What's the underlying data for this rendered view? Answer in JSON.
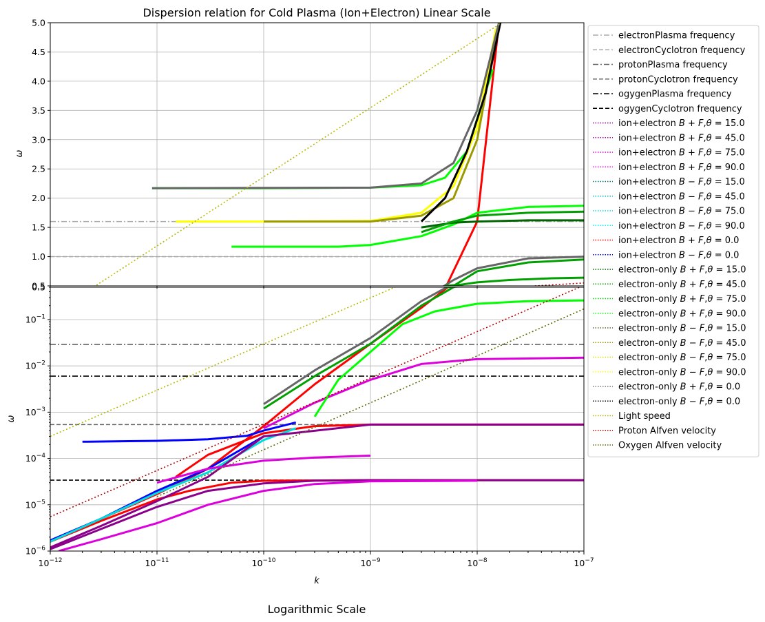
{
  "chart_data": {
    "title": "Dispersion relation for Cold Plasma (Ion+Electron) Linear Scale",
    "bottom_title": "Logarithmic Scale",
    "xlabel": "k",
    "ylabel": "ω",
    "x_scale": "log",
    "xlim": [
      1e-12,
      1e-07
    ],
    "x_ticks": [
      "10^-12",
      "10^-11",
      "10^-10",
      "10^-9",
      "10^-8",
      "10^-7"
    ],
    "grid": true,
    "legend_placement": "outside-right",
    "panels": [
      {
        "name": "linear",
        "type": "line",
        "y_scale": "linear",
        "ylim": [
          0.5,
          5.0
        ],
        "y_ticks": [
          "0.5",
          "1.0",
          "1.5",
          "2.0",
          "2.5",
          "3.0",
          "3.5",
          "4.0",
          "4.5",
          "5.0"
        ]
      },
      {
        "name": "logarithmic",
        "type": "line",
        "y_scale": "log",
        "ylim": [
          1e-06,
          0.5
        ],
        "y_ticks": [
          "10^-6",
          "10^-5",
          "10^-4",
          "10^-3",
          "10^-2",
          "10^-1",
          "0.5"
        ]
      }
    ],
    "reference_lines": [
      {
        "name": "electronPlasma frequency",
        "value": 1.6,
        "color": "#aaaaaa",
        "dash": "dashdot"
      },
      {
        "name": "electronCyclotron frequency",
        "value": 1.0,
        "color": "#aaaaaa",
        "dash": "dashed"
      },
      {
        "name": "protonPlasma frequency",
        "value": 0.029,
        "color": "#666666",
        "dash": "dashdot"
      },
      {
        "name": "protonCyclotron frequency",
        "value": 0.00054,
        "color": "#666666",
        "dash": "dashed"
      },
      {
        "name": "ogygenPlasma frequency",
        "value": 0.006,
        "color": "#000000",
        "dash": "dashdot"
      },
      {
        "name": "ogygenCyclotron frequency",
        "value": 3.4e-05,
        "color": "#000000",
        "dash": "dashed"
      }
    ],
    "series": [
      {
        "name": "ion+electron $B+F,\\theta=15.0$",
        "color": "#8b008b",
        "style": "dotted"
      },
      {
        "name": "ion+electron $B+F,\\theta=45.0$",
        "color": "#b000b0",
        "style": "dotted"
      },
      {
        "name": "ion+electron $B+F,\\theta=75.0$",
        "color": "#dd00dd",
        "style": "dotted"
      },
      {
        "name": "ion+electron $B+F,\\theta=90.0$",
        "color": "#ff00ff",
        "style": "dotted"
      },
      {
        "name": "ion+electron $B-F,\\theta=15.0$",
        "color": "#008080",
        "style": "dotted"
      },
      {
        "name": "ion+electron $B-F,\\theta=45.0$",
        "color": "#00b5b5",
        "style": "dotted"
      },
      {
        "name": "ion+electron $B-F,\\theta=75.0$",
        "color": "#00dddd",
        "style": "dotted"
      },
      {
        "name": "ion+electron $B-F,\\theta=90.0$",
        "color": "#00ffff",
        "style": "dotted"
      },
      {
        "name": "ion+electron $B+F,\\theta=0.0$",
        "color": "#ff0000",
        "style": "dotted"
      },
      {
        "name": "ion+electron $B-F,\\theta=0.0$",
        "color": "#0000ff",
        "style": "dotted"
      },
      {
        "name": "electron-only $B+F,\\theta=15.0$",
        "color": "#006400",
        "style": "dotted"
      },
      {
        "name": "electron-only $B+F,\\theta=45.0$",
        "color": "#00a000",
        "style": "dotted"
      },
      {
        "name": "electron-only $B+F,\\theta=75.0$",
        "color": "#00dd00",
        "style": "dotted"
      },
      {
        "name": "electron-only $B+F,\\theta=90.0$",
        "color": "#00ff00",
        "style": "dotted"
      },
      {
        "name": "electron-only $B-F,\\theta=15.0$",
        "color": "#556b2f",
        "style": "dotted"
      },
      {
        "name": "electron-only $B-F,\\theta=45.0$",
        "color": "#9a9a00",
        "style": "dotted"
      },
      {
        "name": "electron-only $B-F,\\theta=75.0$",
        "color": "#dddd00",
        "style": "dotted"
      },
      {
        "name": "electron-only $B-F,\\theta=90.0$",
        "color": "#ffff00",
        "style": "dotted"
      },
      {
        "name": "electron-only $B+F,\\theta=0.0$",
        "color": "#777777",
        "style": "dotted"
      },
      {
        "name": "electron-only $B-F,\\theta=0.0$",
        "color": "#000000",
        "style": "dotted"
      },
      {
        "name": "Light speed",
        "color": "#b8b800",
        "style": "dotted",
        "x": [
          1e-12,
          1.7e-08
        ],
        "y": [
          0.0003,
          5.0
        ]
      },
      {
        "name": "Proton Alfven velocity",
        "color": "#b00000",
        "style": "dotted",
        "x": [
          1e-12,
          1e-07
        ],
        "y": [
          5.5e-06,
          0.55
        ]
      },
      {
        "name": "Oxygen Alfven velocity",
        "color": "#556b00",
        "style": "dotted",
        "x": [
          1e-11,
          1e-07
        ],
        "y": [
          1.5e-05,
          0.17
        ]
      }
    ],
    "curve_shapes": [
      {
        "color": "#ff0000",
        "x": [
          1e-12,
          3e-12,
          1e-11,
          3e-11,
          1e-10,
          3e-10,
          1e-09,
          3e-09,
          5e-09,
          1e-08,
          1.6e-08
        ],
        "y": [
          1.6e-06,
          5e-06,
          1.7e-05,
          6e-05,
          0.0005,
          0.004,
          0.03,
          0.18,
          0.45,
          1.6,
          5.0
        ]
      },
      {
        "color": "#ff0000",
        "x": [
          1e-12,
          3e-12,
          1e-11,
          2e-11,
          5e-11,
          1e-10,
          1e-09,
          1e-07
        ],
        "y": [
          1.6e-06,
          4.5e-06,
          1.3e-05,
          2e-05,
          3e-05,
          3.3e-05,
          3.4e-05,
          3.4e-05
        ]
      },
      {
        "color": "#ff0000",
        "x": [
          1.5e-11,
          3e-11,
          1e-10,
          3e-10,
          1e-09,
          1e-07
        ],
        "y": [
          4e-05,
          0.00012,
          0.00035,
          0.0005,
          0.00054,
          0.00054
        ]
      },
      {
        "color": "#0000ff",
        "x": [
          2e-12,
          1e-11,
          3e-11,
          7e-11,
          1e-10,
          2e-10
        ],
        "y": [
          0.00023,
          0.00024,
          0.00026,
          0.00031,
          0.0004,
          0.0006
        ]
      },
      {
        "color": "#0000ff",
        "x": [
          1e-12,
          3e-12,
          1e-11,
          3e-11,
          1e-10
        ],
        "y": [
          1.7e-06,
          5e-06,
          2e-05,
          6e-05,
          0.0003
        ]
      },
      {
        "color": "#00dddd",
        "x": [
          1e-12,
          3e-12,
          1e-11,
          3e-11,
          1e-10,
          2e-10
        ],
        "y": [
          1.6e-06,
          5e-06,
          1.8e-05,
          5e-05,
          0.00025,
          0.00045
        ]
      },
      {
        "color": "#8b008b",
        "x": [
          1e-12,
          3e-12,
          1e-11,
          3e-11,
          1e-10,
          1e-09,
          1e-07
        ],
        "y": [
          1.2e-06,
          3.5e-06,
          1.2e-05,
          4e-05,
          0.0003,
          0.00054,
          0.00054
        ]
      },
      {
        "color": "#8b008b",
        "x": [
          1e-12,
          3e-12,
          1e-11,
          3e-11,
          1e-10,
          3e-10,
          1e-09,
          1e-07
        ],
        "y": [
          1.1e-06,
          3e-06,
          9e-06,
          2e-05,
          2.9e-05,
          3.3e-05,
          3.4e-05,
          3.4e-05
        ]
      },
      {
        "color": "#dd00dd",
        "x": [
          1.2e-12,
          3e-12,
          1e-11,
          3e-11,
          1e-10,
          3e-10,
          1e-09,
          1e-08
        ],
        "y": [
          1e-06,
          1.8e-06,
          4e-06,
          1e-05,
          2e-05,
          2.8e-05,
          3.2e-05,
          3.3e-05
        ]
      },
      {
        "color": "#dd00dd",
        "x": [
          1e-11,
          3e-11,
          1e-10,
          3e-10,
          1e-09
        ],
        "y": [
          3e-05,
          6e-05,
          9e-05,
          0.000105,
          0.000115
        ]
      },
      {
        "color": "#dd00dd",
        "x": [
          1e-10,
          3e-10,
          1e-09,
          3e-09,
          1e-08,
          1e-07
        ],
        "y": [
          0.00045,
          0.0016,
          0.005,
          0.011,
          0.014,
          0.015
        ]
      },
      {
        "color": "#666666",
        "x": [
          1e-10,
          3e-10,
          1e-09,
          3e-09,
          6e-09,
          1e-08,
          3e-08,
          1e-07
        ],
        "y": [
          0.0015,
          0.008,
          0.04,
          0.25,
          0.6,
          0.8,
          0.97,
          1.0
        ]
      },
      {
        "color": "#00a000",
        "x": [
          1e-10,
          3e-10,
          1e-09,
          3e-09,
          6e-09,
          1e-08,
          3e-08,
          1e-07
        ],
        "y": [
          0.0012,
          0.006,
          0.03,
          0.2,
          0.5,
          0.75,
          0.9,
          0.95
        ]
      },
      {
        "color": "#00a000",
        "x": [
          5e-09,
          7e-09,
          1e-08,
          2e-08,
          5e-08,
          1e-07
        ],
        "y": [
          0.5,
          0.52,
          0.56,
          0.6,
          0.63,
          0.64
        ]
      },
      {
        "color": "#00ff00",
        "x": [
          3e-10,
          5e-10,
          1e-09,
          2e-09,
          4e-09,
          1e-08,
          3e-08,
          1e-07
        ],
        "y": [
          0.0008,
          0.005,
          0.02,
          0.08,
          0.15,
          0.22,
          0.25,
          0.26
        ]
      },
      {
        "color": "#00ff00",
        "x": [
          9e-12,
          1e-10,
          1e-09,
          3e-09,
          5e-09,
          8e-09,
          1.4e-08
        ],
        "y": [
          2.17,
          2.17,
          2.18,
          2.22,
          2.35,
          2.8,
          4.2
        ]
      },
      {
        "color": "#00ff00",
        "x": [
          5e-11,
          1e-10,
          5e-10,
          1e-09,
          3e-09,
          6e-09,
          1e-08,
          3e-08,
          1e-07
        ],
        "y": [
          1.17,
          1.17,
          1.17,
          1.2,
          1.35,
          1.55,
          1.75,
          1.85,
          1.87
        ]
      },
      {
        "color": "#ffff00",
        "x": [
          1.5e-11,
          1e-10,
          1e-09,
          3e-09,
          6e-09,
          1e-08,
          1.5e-08
        ],
        "y": [
          1.6,
          1.6,
          1.61,
          1.75,
          2.2,
          3.2,
          4.9
        ]
      },
      {
        "color": "#9a9a00",
        "x": [
          1e-10,
          1e-09,
          3e-09,
          6e-09,
          1e-08,
          1.6e-08
        ],
        "y": [
          1.6,
          1.6,
          1.7,
          2.0,
          3.0,
          5.0
        ]
      },
      {
        "color": "#000000",
        "x": [
          3e-09,
          5e-09,
          8e-09,
          1.2e-08,
          1.65e-08
        ],
        "y": [
          1.6,
          2.0,
          2.8,
          3.8,
          5.0
        ]
      },
      {
        "color": "#666666",
        "x": [
          9e-12,
          1e-09,
          3e-09,
          6e-09,
          1e-08,
          1.6e-08
        ],
        "y": [
          2.17,
          2.18,
          2.25,
          2.6,
          3.5,
          5.0
        ]
      },
      {
        "color": "#006400",
        "x": [
          3e-09,
          6e-09,
          1e-08,
          3e-08,
          1e-07
        ],
        "y": [
          1.5,
          1.58,
          1.6,
          1.62,
          1.62
        ]
      },
      {
        "color": "#00a000",
        "x": [
          3e-09,
          6e-09,
          1e-08,
          3e-08,
          1e-07
        ],
        "y": [
          1.42,
          1.6,
          1.7,
          1.75,
          1.77
        ]
      }
    ]
  }
}
